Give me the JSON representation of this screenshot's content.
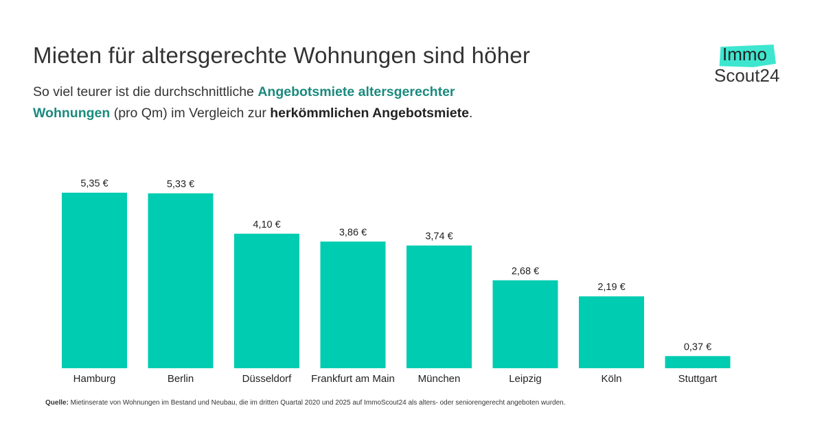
{
  "header": {
    "title": "Mieten für altersgerechte Wohnungen sind höher",
    "subtitle_parts": [
      "So viel teurer ist die durchschnittliche ",
      "Angebotsmiete altersgerechter Wohnungen",
      " (pro Qm) im Vergleich zur ",
      "herkömmlichen Angebotsmiete",
      "."
    ]
  },
  "logo": {
    "top": "Immo",
    "bottom": "Scout24",
    "accent": "#3ee6cf"
  },
  "footer": {
    "source_label": "Quelle:",
    "source_text": " Mietinserate von Wohnungen im Bestand und Neubau, die im dritten Quartal 2020 und 2025 auf ImmoScout24 als alters- oder seniorengerecht angeboten wurden."
  },
  "colors": {
    "bar": "#00ccb1",
    "teal_text": "#1a8a7e"
  },
  "chart_data": {
    "type": "bar",
    "title": "Mieten für altersgerechte Wohnungen sind höher",
    "xlabel": "",
    "ylabel": "",
    "unit": "€",
    "categories": [
      "Hamburg",
      "Berlin",
      "Düsseldorf",
      "Frankfurt am Main",
      "München",
      "Leipzig",
      "Köln",
      "Stuttgart"
    ],
    "values": [
      5.35,
      5.33,
      4.1,
      3.86,
      3.74,
      2.68,
      2.19,
      0.37
    ],
    "labels": [
      "5,35 €",
      "5,33 €",
      "4,10 €",
      "3,86 €",
      "3,74 €",
      "2,68 €",
      "2,19 €",
      "0,37 €"
    ],
    "ylim": [
      0,
      5.35
    ],
    "grid": false,
    "legend": "none"
  }
}
